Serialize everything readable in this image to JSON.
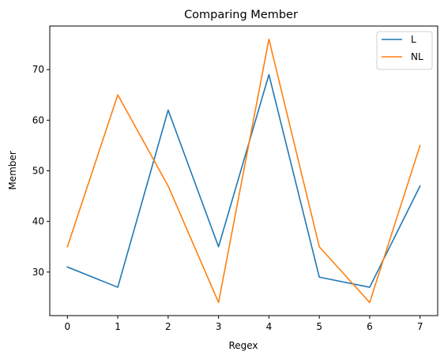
{
  "chart_data": {
    "type": "line",
    "title": "Comparing Member",
    "xlabel": "Regex",
    "ylabel": "Member",
    "x": [
      0,
      1,
      2,
      3,
      4,
      5,
      6,
      7
    ],
    "xlim": [
      -0.35,
      7.35
    ],
    "ylim": [
      21.4,
      78.6
    ],
    "xticks": [
      0,
      1,
      2,
      3,
      4,
      5,
      6,
      7
    ],
    "yticks": [
      30,
      40,
      50,
      60,
      70
    ],
    "grid": false,
    "legend_position": "top-right",
    "series": [
      {
        "name": "L",
        "color": "#1f77b4",
        "values": [
          31,
          27,
          62,
          35,
          69,
          29,
          27,
          47
        ]
      },
      {
        "name": "NL",
        "color": "#ff7f0e",
        "values": [
          35,
          65,
          47,
          24,
          76,
          35,
          24,
          55
        ]
      }
    ]
  }
}
